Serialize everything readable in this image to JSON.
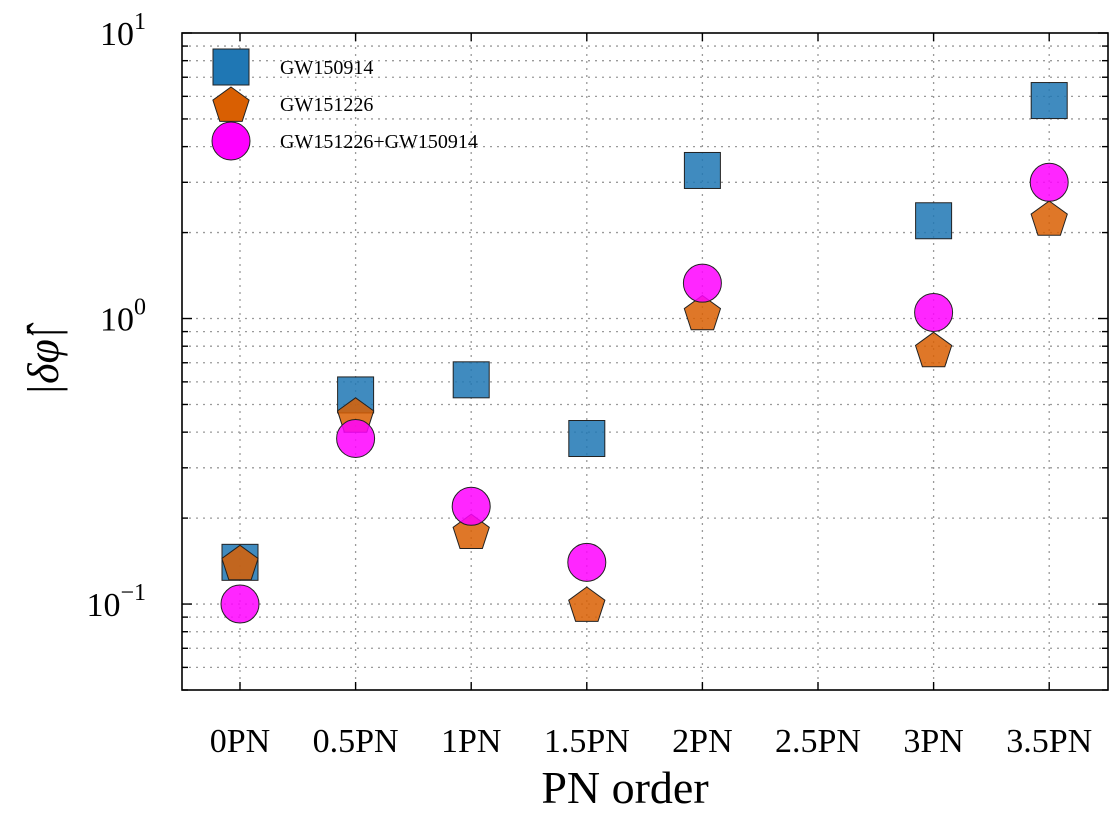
{
  "chart_data": {
    "type": "scatter",
    "xlabel": "PN order",
    "ylabel": "|δφ̂|",
    "categories": [
      "0PN",
      "0.5PN",
      "1PN",
      "1.5PN",
      "2PN",
      "2.5PN",
      "3PN",
      "3.5PN"
    ],
    "y_scale": "log",
    "ylim": [
      0.05,
      10
    ],
    "y_major_ticks": [
      {
        "value": 0.1,
        "base": "10",
        "exp": "−1"
      },
      {
        "value": 1,
        "base": "10",
        "exp": "0"
      },
      {
        "value": 10,
        "base": "10",
        "exp": "1"
      }
    ],
    "grid": true,
    "legend_position": "top-left",
    "series": [
      {
        "name": "GW150914",
        "marker": "square",
        "color": "#1f77b4",
        "points": [
          {
            "x": "0PN",
            "y": 0.14
          },
          {
            "x": "0.5PN",
            "y": 0.54
          },
          {
            "x": "1PN",
            "y": 0.61
          },
          {
            "x": "1.5PN",
            "y": 0.38
          },
          {
            "x": "2PN",
            "y": 3.3
          },
          {
            "x": "3PN",
            "y": 2.2
          },
          {
            "x": "3.5PN",
            "y": 5.8
          }
        ]
      },
      {
        "name": "GW151226",
        "marker": "pentagon",
        "color": "#d95f02",
        "points": [
          {
            "x": "0PN",
            "y": 0.14
          },
          {
            "x": "0.5PN",
            "y": 0.46
          },
          {
            "x": "1PN",
            "y": 0.18
          },
          {
            "x": "1.5PN",
            "y": 0.1
          },
          {
            "x": "2PN",
            "y": 1.05
          },
          {
            "x": "3PN",
            "y": 0.78
          },
          {
            "x": "3.5PN",
            "y": 2.25
          }
        ]
      },
      {
        "name": "GW151226+GW150914",
        "marker": "circle",
        "color": "#ff00ff",
        "points": [
          {
            "x": "0PN",
            "y": 0.1
          },
          {
            "x": "0.5PN",
            "y": 0.38
          },
          {
            "x": "1PN",
            "y": 0.22
          },
          {
            "x": "1.5PN",
            "y": 0.14
          },
          {
            "x": "2PN",
            "y": 1.33
          },
          {
            "x": "3PN",
            "y": 1.05
          },
          {
            "x": "3.5PN",
            "y": 3.0
          }
        ]
      }
    ]
  }
}
